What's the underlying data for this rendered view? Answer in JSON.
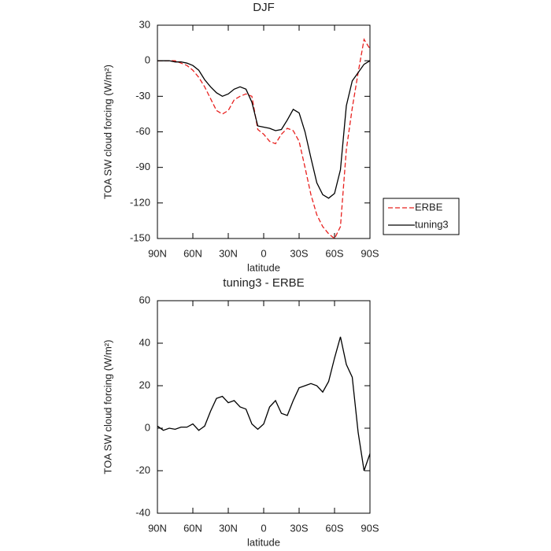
{
  "chart_data": [
    {
      "type": "line",
      "title": "DJF",
      "xlabel": "latitude",
      "ylabel": "TOA SW cloud forcing (W/m²)",
      "x": [
        90,
        85,
        80,
        75,
        70,
        65,
        60,
        55,
        50,
        45,
        40,
        35,
        30,
        25,
        20,
        15,
        10,
        5,
        0,
        -5,
        -10,
        -15,
        -20,
        -25,
        -30,
        -35,
        -40,
        -45,
        -50,
        -55,
        -60,
        -65,
        -70,
        -75,
        -80,
        -85,
        -90
      ],
      "series": [
        {
          "name": "ERBE",
          "color": "#e8201e",
          "linestyle": "dashed",
          "values": [
            0,
            0,
            0,
            0,
            -2,
            -4,
            -8,
            -14,
            -22,
            -32,
            -42,
            -45,
            -42,
            -33,
            -30,
            -28,
            -30,
            -58,
            -62,
            -68,
            -70,
            -62,
            -57,
            -59,
            -68,
            -90,
            -113,
            -130,
            -140,
            -146,
            -150,
            -140,
            -75,
            -40,
            -10,
            18,
            10
          ]
        },
        {
          "name": "tuning3",
          "color": "#000000",
          "linestyle": "solid",
          "values": [
            0,
            0,
            0,
            -1,
            -1,
            -2,
            -4,
            -8,
            -16,
            -22,
            -27,
            -30,
            -28,
            -24,
            -22,
            -24,
            -35,
            -55,
            -56,
            -57,
            -59,
            -58,
            -50,
            -41,
            -44,
            -60,
            -82,
            -103,
            -113,
            -116,
            -112,
            -92,
            -38,
            -17,
            -10,
            -3,
            0
          ]
        }
      ],
      "xlim": [
        90,
        -90
      ],
      "xticks": [
        {
          "value": 90,
          "label": "90N"
        },
        {
          "value": 60,
          "label": "60N"
        },
        {
          "value": 30,
          "label": "30N"
        },
        0,
        {
          "value": -30,
          "label": "30S"
        },
        {
          "value": -60,
          "label": "60S"
        },
        {
          "value": -90,
          "label": "90S"
        }
      ],
      "ylim": [
        -150,
        30
      ],
      "yticks": [
        -150,
        -120,
        -90,
        -60,
        -30,
        0,
        30
      ],
      "legend": "right"
    },
    {
      "type": "line",
      "title": "tuning3 - ERBE",
      "xlabel": "latitude",
      "ylabel": "TOA SW cloud forcing (W/m²)",
      "x": [
        90,
        85,
        80,
        75,
        70,
        65,
        60,
        55,
        50,
        45,
        40,
        35,
        30,
        25,
        20,
        15,
        10,
        5,
        0,
        -5,
        -10,
        -15,
        -20,
        -25,
        -30,
        -35,
        -40,
        -45,
        -50,
        -55,
        -60,
        -65,
        -70,
        -75,
        -80,
        -85,
        -90
      ],
      "series": [
        {
          "color": "#000000",
          "linestyle": "solid",
          "values": [
            1,
            -1,
            0,
            -0.5,
            0.5,
            0.5,
            2,
            -1,
            1,
            8,
            14,
            15,
            12,
            13,
            10,
            9,
            2,
            -0.5,
            2,
            10,
            13,
            7,
            6,
            13,
            19,
            20,
            21,
            20,
            17,
            22,
            33,
            43,
            30,
            24,
            -2,
            -20,
            -12
          ]
        }
      ],
      "xlim": [
        90,
        -90
      ],
      "xticks": [
        {
          "value": 90,
          "label": "90N"
        },
        {
          "value": 60,
          "label": "60N"
        },
        {
          "value": 30,
          "label": "30N"
        },
        0,
        {
          "value": -30,
          "label": "30S"
        },
        {
          "value": -60,
          "label": "60S"
        },
        {
          "value": -90,
          "label": "90S"
        }
      ],
      "ylim": [
        -40,
        60
      ],
      "yticks": [
        -40,
        -20,
        0,
        20,
        40,
        60
      ]
    }
  ]
}
